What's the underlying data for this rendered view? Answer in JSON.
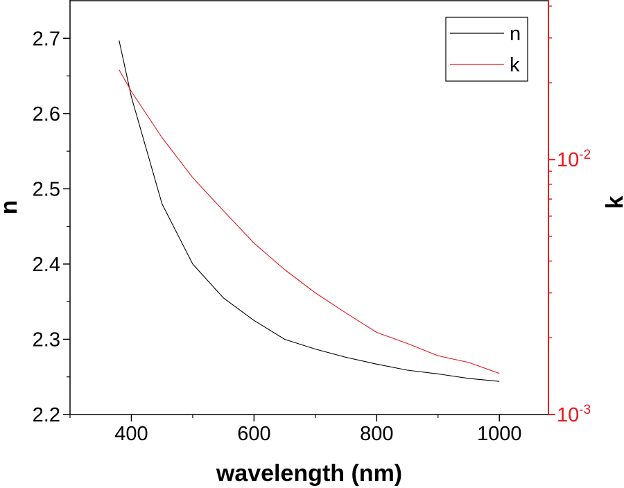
{
  "chart_data": {
    "type": "line",
    "xlabel": "wavelength (nm)",
    "ylabel_left": "n",
    "ylabel_right": "k",
    "xlim": [
      300,
      1080
    ],
    "ylim_left": [
      2.2,
      2.75
    ],
    "ylim_right": [
      0.001,
      0.042
    ],
    "right_axis_scale": "log",
    "x_ticks": [
      {
        "value": 400,
        "label": "400"
      },
      {
        "value": 600,
        "label": "600"
      },
      {
        "value": 800,
        "label": "800"
      },
      {
        "value": 1000,
        "label": "1000"
      }
    ],
    "y_left_ticks": [
      {
        "value": 2.2,
        "label": "2.2"
      },
      {
        "value": 2.3,
        "label": "2.3"
      },
      {
        "value": 2.4,
        "label": "2.4"
      },
      {
        "value": 2.5,
        "label": "2.5"
      },
      {
        "value": 2.6,
        "label": "2.6"
      },
      {
        "value": 2.7,
        "label": "2.7"
      }
    ],
    "y_right_ticks": [
      {
        "value": 0.001,
        "base": "10",
        "exp": "-3"
      },
      {
        "value": 0.01,
        "base": "10",
        "exp": "-2"
      }
    ],
    "legend": {
      "position": "top-right"
    },
    "grid": false,
    "series": [
      {
        "name": "n",
        "axis": "left",
        "color": "#000000",
        "x": [
          380,
          400,
          450,
          500,
          550,
          600,
          650,
          700,
          750,
          800,
          850,
          900,
          950,
          1000
        ],
        "y": [
          2.697,
          2.622,
          2.48,
          2.4,
          2.355,
          2.325,
          2.3,
          2.287,
          2.276,
          2.267,
          2.259,
          2.254,
          2.248,
          2.244
        ]
      },
      {
        "name": "k",
        "axis": "right",
        "color": "#e8171f",
        "x": [
          380,
          400,
          450,
          500,
          550,
          600,
          650,
          700,
          750,
          800,
          850,
          900,
          950,
          1000
        ],
        "y": [
          0.0225,
          0.0185,
          0.0122,
          0.0085,
          0.0063,
          0.0047,
          0.0037,
          0.003,
          0.0025,
          0.0021,
          0.0019,
          0.0017,
          0.0016,
          0.00145
        ]
      }
    ]
  }
}
